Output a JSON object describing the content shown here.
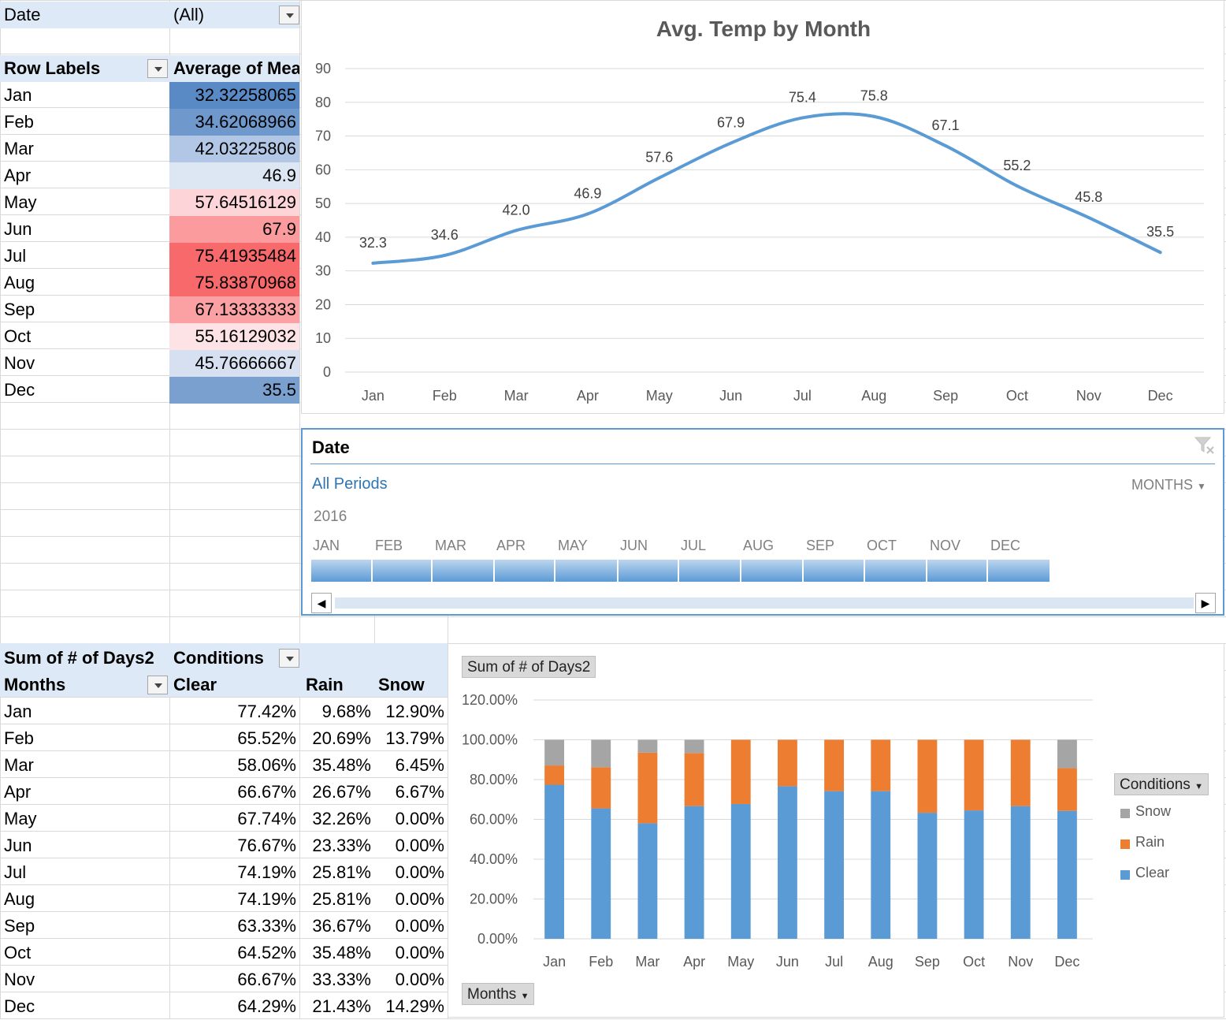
{
  "pivot1": {
    "filter_label": "Date",
    "filter_value": "(All)",
    "row_header": "Row Labels",
    "value_header": "Average of Mea",
    "rows": [
      {
        "label": "Jan",
        "value": "32.32258065",
        "color": "#5a8ac6"
      },
      {
        "label": "Feb",
        "value": "34.62068966",
        "color": "#6f98cc"
      },
      {
        "label": "Mar",
        "value": "42.03225806",
        "color": "#b2c7e6"
      },
      {
        "label": "Apr",
        "value": "46.9",
        "color": "#dde6f3"
      },
      {
        "label": "May",
        "value": "57.64516129",
        "color": "#fdd5d8"
      },
      {
        "label": "Jun",
        "value": "67.9",
        "color": "#fb9b9e"
      },
      {
        "label": "Jul",
        "value": "75.41935484",
        "color": "#f8696b"
      },
      {
        "label": "Aug",
        "value": "75.83870968",
        "color": "#f8696b"
      },
      {
        "label": "Sep",
        "value": "67.13333333",
        "color": "#fba0a3"
      },
      {
        "label": "Oct",
        "value": "55.16129032",
        "color": "#fde3e5"
      },
      {
        "label": "Nov",
        "value": "45.76666667",
        "color": "#d6e0f0"
      },
      {
        "label": "Dec",
        "value": "35.5",
        "color": "#7aa0d0"
      }
    ]
  },
  "line_chart": {
    "title": "Avg. Temp by Month",
    "chart_data": {
      "type": "line",
      "categories": [
        "Jan",
        "Feb",
        "Mar",
        "Apr",
        "May",
        "Jun",
        "Jul",
        "Aug",
        "Sep",
        "Oct",
        "Nov",
        "Dec"
      ],
      "values": [
        32.3,
        34.6,
        42.0,
        46.9,
        57.6,
        67.9,
        75.4,
        75.8,
        67.1,
        55.2,
        45.8,
        35.5
      ],
      "data_labels": [
        "32.3",
        "34.6",
        "42.0",
        "46.9",
        "57.6",
        "67.9",
        "75.4",
        "75.8",
        "67.1",
        "55.2",
        "45.8",
        "35.5"
      ],
      "title": "Avg. Temp by Month",
      "ylim": [
        0,
        90
      ],
      "yticks": [
        "0",
        "10",
        "20",
        "30",
        "40",
        "50",
        "60",
        "70",
        "80",
        "90"
      ],
      "grid": true,
      "color": "#5b9bd5"
    }
  },
  "timeline": {
    "title": "Date",
    "all_periods": "All Periods",
    "level": "MONTHS",
    "year": "2016",
    "months": [
      "JAN",
      "FEB",
      "MAR",
      "APR",
      "MAY",
      "JUN",
      "JUL",
      "AUG",
      "SEP",
      "OCT",
      "NOV",
      "DEC"
    ]
  },
  "pivot2": {
    "value_header": "Sum of # of Days2",
    "col_field": "Conditions",
    "row_field": "Months",
    "col_labels": [
      "Clear",
      "Rain",
      "Snow"
    ],
    "rows": [
      {
        "label": "Jan",
        "clear": "77.42%",
        "rain": "9.68%",
        "snow": "12.90%"
      },
      {
        "label": "Feb",
        "clear": "65.52%",
        "rain": "20.69%",
        "snow": "13.79%"
      },
      {
        "label": "Mar",
        "clear": "58.06%",
        "rain": "35.48%",
        "snow": "6.45%"
      },
      {
        "label": "Apr",
        "clear": "66.67%",
        "rain": "26.67%",
        "snow": "6.67%"
      },
      {
        "label": "May",
        "clear": "67.74%",
        "rain": "32.26%",
        "snow": "0.00%"
      },
      {
        "label": "Jun",
        "clear": "76.67%",
        "rain": "23.33%",
        "snow": "0.00%"
      },
      {
        "label": "Jul",
        "clear": "74.19%",
        "rain": "25.81%",
        "snow": "0.00%"
      },
      {
        "label": "Aug",
        "clear": "74.19%",
        "rain": "25.81%",
        "snow": "0.00%"
      },
      {
        "label": "Sep",
        "clear": "63.33%",
        "rain": "36.67%",
        "snow": "0.00%"
      },
      {
        "label": "Oct",
        "clear": "64.52%",
        "rain": "35.48%",
        "snow": "0.00%"
      },
      {
        "label": "Nov",
        "clear": "66.67%",
        "rain": "33.33%",
        "snow": "0.00%"
      },
      {
        "label": "Dec",
        "clear": "64.29%",
        "rain": "21.43%",
        "snow": "14.29%"
      }
    ]
  },
  "bar_chart": {
    "value_button": "Sum of # of Days2",
    "axis_button": "Months",
    "legend_button": "Conditions",
    "chart_data": {
      "type": "bar",
      "stacked": true,
      "categories": [
        "Jan",
        "Feb",
        "Mar",
        "Apr",
        "May",
        "Jun",
        "Jul",
        "Aug",
        "Sep",
        "Oct",
        "Nov",
        "Dec"
      ],
      "series": [
        {
          "name": "Clear",
          "color": "#5b9bd5",
          "values": [
            77.42,
            65.52,
            58.06,
            66.67,
            67.74,
            76.67,
            74.19,
            74.19,
            63.33,
            64.52,
            66.67,
            64.29
          ]
        },
        {
          "name": "Rain",
          "color": "#ed7d31",
          "values": [
            9.68,
            20.69,
            35.48,
            26.67,
            32.26,
            23.33,
            25.81,
            25.81,
            36.67,
            35.48,
            33.33,
            21.43
          ]
        },
        {
          "name": "Snow",
          "color": "#a5a5a5",
          "values": [
            12.9,
            13.79,
            6.45,
            6.67,
            0,
            0,
            0,
            0,
            0,
            0,
            0,
            14.29
          ]
        }
      ],
      "ylim": [
        0,
        120
      ],
      "yticks": [
        "0.00%",
        "20.00%",
        "40.00%",
        "60.00%",
        "80.00%",
        "100.00%",
        "120.00%"
      ],
      "legend": [
        "Snow",
        "Rain",
        "Clear"
      ],
      "legend_position": "right",
      "grid": true
    }
  }
}
